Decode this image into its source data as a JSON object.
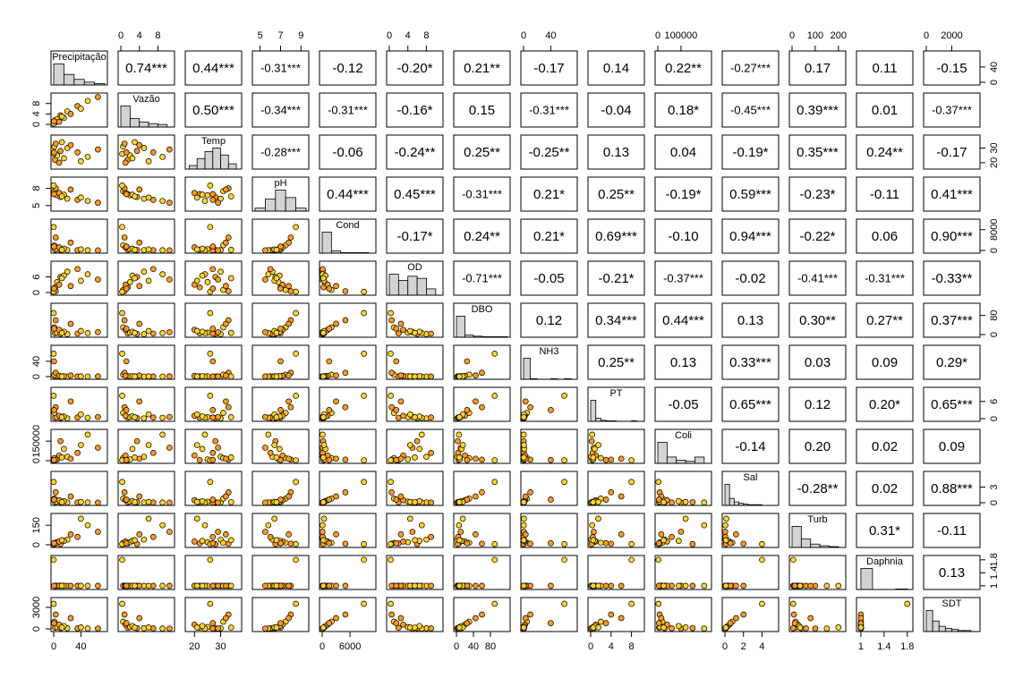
{
  "chart_data": {
    "type": "scatter_matrix",
    "point_colors": [
      "#ff9a1f",
      "#ffd42a"
    ],
    "hist_color": "#d3d3d3",
    "variables": [
      {
        "name": "Precipitação",
        "lim": [
          0,
          75
        ],
        "row_ticks": [
          0,
          40
        ],
        "col_ticks": [
          0,
          40
        ],
        "hist_bins": [
          0,
          15,
          30,
          45,
          60,
          75
        ],
        "hist_counts": [
          30,
          15,
          8,
          4,
          2
        ]
      },
      {
        "name": "Vazão",
        "lim": [
          0,
          11
        ],
        "row_ticks": [
          0,
          4,
          8
        ],
        "col_ticks": [
          0,
          4,
          8
        ],
        "hist_bins": [
          0,
          2,
          4,
          6,
          8,
          10
        ],
        "hist_counts": [
          25,
          10,
          6,
          4,
          3
        ]
      },
      {
        "name": "Temp",
        "lim": [
          17.5,
          37
        ],
        "row_ticks": [
          20,
          30
        ],
        "col_ticks": [
          20,
          30
        ],
        "hist_bins": [
          18,
          21,
          24,
          27,
          30,
          33,
          36
        ],
        "hist_counts": [
          2,
          6,
          10,
          12,
          8,
          3
        ]
      },
      {
        "name": "pH",
        "lim": [
          4.5,
          9.5
        ],
        "row_ticks": [
          5,
          8
        ],
        "col_ticks": [
          5,
          7,
          9
        ],
        "hist_bins": [
          4.5,
          5.5,
          6.5,
          7.5,
          8.5,
          9.5
        ],
        "hist_counts": [
          2,
          8,
          14,
          9,
          2
        ]
      },
      {
        "name": "Cond",
        "lim": [
          0,
          11000
        ],
        "row_ticks": [
          0,
          8000
        ],
        "col_ticks": [
          0,
          6000
        ],
        "hist_bins": [
          0,
          2000,
          4000,
          6000,
          8000,
          10000
        ],
        "hist_counts": [
          40,
          4,
          1,
          1,
          1
        ]
      },
      {
        "name": "OD",
        "lim": [
          0,
          11
        ],
        "row_ticks": [
          0,
          6
        ],
        "col_ticks": [
          0,
          4,
          8
        ],
        "hist_bins": [
          0,
          2,
          4,
          6,
          8,
          10
        ],
        "hist_counts": [
          10,
          7,
          9,
          8,
          3
        ]
      },
      {
        "name": "DBO",
        "lim": [
          0,
          120
        ],
        "row_ticks": [
          0,
          80
        ],
        "col_ticks": [
          0,
          40,
          80
        ],
        "hist_bins": [
          0,
          20,
          40,
          60,
          80,
          100,
          120
        ],
        "hist_counts": [
          40,
          4,
          2,
          1,
          1,
          1
        ]
      },
      {
        "name": "NH3",
        "lim": [
          0,
          75
        ],
        "row_ticks": [
          0,
          40
        ],
        "col_ticks": [
          0,
          40
        ],
        "hist_bins": [
          0,
          10,
          20,
          30,
          40,
          50,
          60,
          70
        ],
        "hist_counts": [
          40,
          1,
          0,
          0,
          1,
          0,
          1
        ]
      },
      {
        "name": "PT",
        "lim": [
          0,
          10
        ],
        "row_ticks": [
          0,
          6
        ],
        "col_ticks": [
          0,
          4,
          8
        ],
        "hist_bins": [
          0,
          1,
          2,
          3,
          4,
          5,
          6,
          7,
          8,
          9
        ],
        "hist_counts": [
          40,
          6,
          2,
          1,
          1,
          0,
          0,
          0,
          1
        ]
      },
      {
        "name": "Coli",
        "lim": [
          0,
          220000
        ],
        "row_ticks": [
          0,
          150000
        ],
        "col_ticks": [
          0,
          100000
        ],
        "hist_bins": [
          0,
          40000,
          80000,
          120000,
          160000,
          200000
        ],
        "hist_counts": [
          20,
          6,
          3,
          2,
          6
        ]
      },
      {
        "name": "Sal",
        "lim": [
          0,
          5.5
        ],
        "row_ticks": [
          0,
          3
        ],
        "col_ticks": [
          0,
          2,
          4
        ],
        "hist_bins": [
          0,
          0.5,
          1,
          1.5,
          2,
          2.5,
          3,
          3.5,
          4
        ],
        "hist_counts": [
          30,
          10,
          5,
          3,
          2,
          1,
          1,
          1
        ]
      },
      {
        "name": "Turb",
        "lim": [
          0,
          220
        ],
        "row_ticks": [
          0,
          150
        ],
        "col_ticks": [
          0,
          100,
          200
        ],
        "hist_bins": [
          0,
          40,
          80,
          120,
          160,
          200
        ],
        "hist_counts": [
          25,
          10,
          4,
          2,
          1
        ]
      },
      {
        "name": "Daphnia",
        "lim": [
          0.97,
          1.85
        ],
        "row_ticks": [
          1.0,
          1.4,
          1.8
        ],
        "col_ticks": [
          1.0,
          1.4,
          1.8
        ],
        "hist_bins": [
          1,
          1.2,
          1.4,
          1.6,
          1.8
        ],
        "hist_counts": [
          40,
          0,
          0,
          1
        ]
      },
      {
        "name": "SDT",
        "lim": [
          0,
          4000
        ],
        "row_ticks": [
          0,
          3000
        ],
        "col_ticks": [
          0,
          2000
        ],
        "hist_bins": [
          0,
          500,
          1000,
          1500,
          2000,
          2500,
          3000,
          3500
        ],
        "hist_counts": [
          20,
          10,
          5,
          3,
          2,
          1,
          1
        ]
      }
    ],
    "correlations": [
      [
        "0.74***",
        "0.44***",
        "-0.31***",
        "-0.12",
        "-0.20*",
        "0.21**",
        "-0.17",
        "0.14",
        "0.22**",
        "-0.27***",
        "0.17",
        "0.11",
        "-0.15"
      ],
      [
        "0.50***",
        "-0.34***",
        "-0.31***",
        "-0.16*",
        "0.15",
        "-0.31***",
        "-0.04",
        "0.18*",
        "-0.45***",
        "0.39***",
        "0.01",
        "-0.37***"
      ],
      [
        "-0.28***",
        "-0.06",
        "-0.24**",
        "0.25**",
        "-0.25**",
        "0.13",
        "0.04",
        "-0.19*",
        "0.35***",
        "0.24**",
        "-0.17"
      ],
      [
        "0.44***",
        "0.45***",
        "-0.31***",
        "0.21*",
        "0.25**",
        "-0.19*",
        "0.59***",
        "-0.23*",
        "-0.11",
        "0.41***"
      ],
      [
        "-0.17*",
        "0.24**",
        "0.21*",
        "0.69***",
        "-0.10",
        "0.94***",
        "-0.22*",
        "0.06",
        "0.90***"
      ],
      [
        "-0.71***",
        "-0.05",
        "-0.21*",
        "-0.37***",
        "-0.02",
        "-0.41***",
        "-0.31***",
        "-0.33**"
      ],
      [
        "0.12",
        "0.34***",
        "0.44***",
        "0.13",
        "0.30**",
        "0.27**",
        "0.37***"
      ],
      [
        "0.25**",
        "0.13",
        "0.33***",
        "0.03",
        "0.09",
        "0.29*"
      ],
      [
        "-0.05",
        "0.65***",
        "0.12",
        "0.20*",
        "0.65***"
      ],
      [
        "-0.14",
        "0.20",
        "0.02",
        "0.09"
      ],
      [
        "-0.28**",
        "0.02",
        "0.88***"
      ],
      [
        "0.31*",
        "-0.11"
      ],
      [
        "0.13"
      ]
    ],
    "observations": [
      [
        2,
        1.5,
        22,
        7.0,
        300,
        2,
        5,
        0.5,
        0.3,
        5000,
        0.1,
        10,
        1,
        150
      ],
      [
        5,
        2.0,
        25,
        6.8,
        500,
        4,
        8,
        1,
        0.5,
        10000,
        0.2,
        20,
        1,
        250
      ],
      [
        10,
        3.5,
        28,
        6.5,
        200,
        6,
        3,
        0.2,
        0.2,
        150000,
        0.1,
        5,
        1,
        100
      ],
      [
        20,
        5.0,
        30,
        6.2,
        150,
        8,
        2,
        0.1,
        0.1,
        30000,
        0.05,
        40,
        1,
        80
      ],
      [
        35,
        7.0,
        27,
        6.0,
        100,
        9,
        4,
        0.3,
        0.4,
        60000,
        0.05,
        60,
        1,
        60
      ],
      [
        50,
        9.0,
        24,
        5.8,
        80,
        7,
        6,
        0.2,
        0.3,
        200000,
        0.04,
        150,
        1,
        50
      ],
      [
        65,
        10.5,
        29,
        5.5,
        60,
        5,
        10,
        0.5,
        0.6,
        100000,
        0.03,
        100,
        1,
        40
      ],
      [
        1,
        0.5,
        31,
        7.5,
        2000,
        1,
        30,
        5,
        2,
        20000,
        0.8,
        15,
        1,
        1000
      ],
      [
        3,
        0.8,
        33,
        8.0,
        5000,
        0.5,
        60,
        10,
        4,
        8000,
        2.0,
        8,
        1,
        2000
      ],
      [
        0,
        0.3,
        26,
        8.5,
        9000,
        0.3,
        90,
        60,
        8,
        3000,
        4.0,
        5,
        1.8,
        3500
      ],
      [
        8,
        1.0,
        20,
        7.2,
        1200,
        3,
        20,
        2,
        1,
        40000,
        0.5,
        25,
        1,
        600
      ],
      [
        15,
        2.5,
        23,
        6.9,
        700,
        6.5,
        12,
        1,
        0.8,
        90000,
        0.3,
        30,
        1,
        400
      ],
      [
        25,
        4.0,
        32,
        7.8,
        3000,
        2.5,
        45,
        3,
        6,
        15000,
        1.2,
        80,
        1,
        1500
      ],
      [
        40,
        6.0,
        21,
        6.4,
        400,
        4.5,
        15,
        0.5,
        1.5,
        120000,
        0.15,
        200,
        1,
        200
      ],
      [
        0.5,
        1.2,
        27,
        7.0,
        1500,
        1.5,
        25,
        40,
        3,
        5000,
        0.6,
        12,
        1,
        800
      ],
      [
        12,
        3.0,
        34,
        6.6,
        250,
        5.5,
        7,
        0.3,
        0.5,
        25000,
        0.1,
        35,
        1,
        180
      ]
    ]
  }
}
